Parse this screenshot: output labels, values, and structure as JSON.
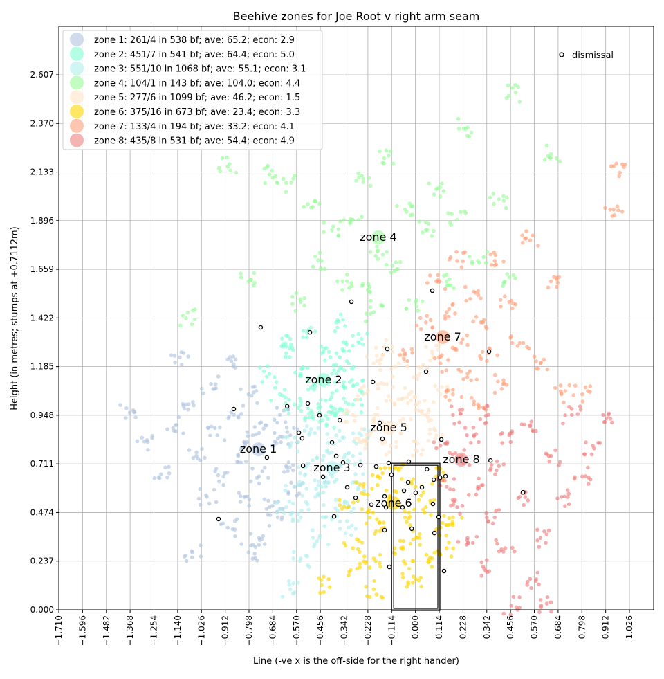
{
  "chart_data": {
    "type": "scatter",
    "title": "Beehive zones for Joe Root v right arm seam",
    "xlabel": "Line (-ve x is the off-side for the right hander)",
    "ylabel": "Height (in metres; stumps at +0.7112m)",
    "xlim": [
      -1.71,
      1.142
    ],
    "ylim": [
      0,
      2.843
    ],
    "grid": true,
    "legend_placement": "top-left",
    "x_ticks": [
      "−1.710",
      "−1.596",
      "−1.482",
      "−1.368",
      "−1.254",
      "−1.140",
      "−1.026",
      "−0.912",
      "−0.798",
      "−0.684",
      "−0.570",
      "−0.456",
      "−0.342",
      "−0.228",
      "−0.114",
      "0.000",
      "0.114",
      "0.228",
      "0.342",
      "0.456",
      "0.570",
      "0.684",
      "0.798",
      "0.912",
      "1.026"
    ],
    "x_tick_values": [
      -1.71,
      -1.596,
      -1.482,
      -1.368,
      -1.254,
      -1.14,
      -1.026,
      -0.912,
      -0.798,
      -0.684,
      -0.57,
      -0.456,
      -0.342,
      -0.228,
      -0.114,
      0,
      0.114,
      0.228,
      0.342,
      0.456,
      0.57,
      0.684,
      0.798,
      0.912,
      1.026
    ],
    "y_ticks": [
      "0.000",
      "0.237",
      "0.474",
      "0.711",
      "0.948",
      "1.185",
      "1.422",
      "1.659",
      "1.896",
      "2.133",
      "2.370",
      "2.607"
    ],
    "y_tick_values": [
      0,
      0.237,
      0.474,
      0.711,
      0.948,
      1.185,
      1.422,
      1.659,
      1.896,
      2.133,
      2.37,
      2.607
    ],
    "stumps_box": {
      "x": [
        -0.111,
        0.114
      ],
      "y": [
        0,
        0.711
      ]
    },
    "zones": [
      {
        "name": "zone 1",
        "legend": "zone 1: 261/4 in 538 bf; ave: 65.2; econ: 2.9",
        "color": "#b0c4de",
        "label_at": [
          -0.753,
          0.765
        ],
        "points": [
          [
            -1.37,
            0.96
          ],
          [
            -1.3,
            0.82
          ],
          [
            -1.22,
            0.66
          ],
          [
            -1.15,
            0.9
          ],
          [
            -1.1,
            1.0
          ],
          [
            -1.05,
            0.75
          ],
          [
            -1.0,
            0.55
          ],
          [
            -0.98,
            1.1
          ],
          [
            -0.95,
            0.85
          ],
          [
            -0.92,
            0.65
          ],
          [
            -0.9,
            0.4
          ],
          [
            -0.87,
            0.95
          ],
          [
            -0.85,
            0.75
          ],
          [
            -0.82,
            0.55
          ],
          [
            -0.8,
            1.05
          ],
          [
            -0.78,
            0.85
          ],
          [
            -0.75,
            0.65
          ],
          [
            -0.72,
            0.9
          ],
          [
            -0.7,
            0.5
          ],
          [
            -0.68,
            0.8
          ],
          [
            -0.65,
            0.95
          ],
          [
            -0.62,
            0.7
          ],
          [
            -0.6,
            0.85
          ],
          [
            -0.58,
            0.6
          ],
          [
            -1.13,
            1.23
          ],
          [
            -0.9,
            1.22
          ],
          [
            -0.8,
            0.28
          ],
          [
            -1.07,
            0.28
          ],
          [
            -0.66,
            0.45
          ],
          [
            -0.75,
            0.35
          ]
        ]
      },
      {
        "name": "zone 2",
        "legend": "zone 2: 451/7 in 541 bf; ave: 64.4; econ: 5.0",
        "color": "#7fffd4",
        "label_at": [
          -0.44,
          1.103
        ],
        "points": [
          [
            -0.7,
            1.15
          ],
          [
            -0.65,
            1.05
          ],
          [
            -0.62,
            1.25
          ],
          [
            -0.58,
            1.0
          ],
          [
            -0.55,
            1.15
          ],
          [
            -0.52,
            1.35
          ],
          [
            -0.5,
            0.97
          ],
          [
            -0.48,
            1.1
          ],
          [
            -0.45,
            1.25
          ],
          [
            -0.43,
            1.02
          ],
          [
            -0.4,
            1.15
          ],
          [
            -0.38,
            1.4
          ],
          [
            -0.36,
            0.98
          ],
          [
            -0.34,
            1.08
          ],
          [
            -0.32,
            1.2
          ],
          [
            -0.3,
            1.0
          ],
          [
            -0.28,
            1.1
          ],
          [
            -0.27,
            1.3
          ],
          [
            -0.46,
            0.96
          ],
          [
            -0.42,
            0.93
          ],
          [
            -0.6,
            1.32
          ],
          [
            -0.35,
            1.27
          ]
        ]
      },
      {
        "name": "zone 3",
        "legend": "zone 3: 551/10 in 1068 bf; ave: 55.1; econ: 3.1",
        "color": "#afeeee",
        "label_at": [
          -0.4,
          0.675
        ],
        "points": [
          [
            -0.6,
            0.8
          ],
          [
            -0.58,
            0.6
          ],
          [
            -0.55,
            0.45
          ],
          [
            -0.52,
            0.7
          ],
          [
            -0.5,
            0.88
          ],
          [
            -0.48,
            0.55
          ],
          [
            -0.46,
            0.35
          ],
          [
            -0.44,
            0.75
          ],
          [
            -0.42,
            0.62
          ],
          [
            -0.4,
            0.45
          ],
          [
            -0.38,
            0.85
          ],
          [
            -0.36,
            0.7
          ],
          [
            -0.34,
            0.52
          ],
          [
            -0.32,
            0.4
          ],
          [
            -0.3,
            0.75
          ],
          [
            -0.28,
            0.62
          ],
          [
            -0.26,
            0.85
          ],
          [
            -0.55,
            0.25
          ],
          [
            -0.6,
            0.1
          ],
          [
            -0.45,
            0.6
          ],
          [
            -0.62,
            0.5
          ]
        ]
      },
      {
        "name": "zone 4",
        "legend": "zone 4: 104/1 in 143 bf; ave: 104.0; econ: 4.4",
        "color": "#98fb98",
        "label_at": [
          -0.178,
          1.798
        ],
        "points": [
          [
            -0.9,
            2.16
          ],
          [
            -0.7,
            2.12
          ],
          [
            -0.62,
            2.08
          ],
          [
            -0.5,
            1.96
          ],
          [
            -0.45,
            1.7
          ],
          [
            -0.4,
            1.85
          ],
          [
            -0.35,
            1.6
          ],
          [
            -0.3,
            1.9
          ],
          [
            -0.25,
            2.1
          ],
          [
            -0.22,
            1.55
          ],
          [
            -0.18,
            1.75
          ],
          [
            -0.15,
            2.2
          ],
          [
            -0.1,
            1.65
          ],
          [
            -0.05,
            1.95
          ],
          [
            0.0,
            1.5
          ],
          [
            0.05,
            1.85
          ],
          [
            0.1,
            2.05
          ],
          [
            0.15,
            1.6
          ],
          [
            0.2,
            1.9
          ],
          [
            0.25,
            2.35
          ],
          [
            0.3,
            1.7
          ],
          [
            0.4,
            2.0
          ],
          [
            0.48,
            2.52
          ],
          [
            0.65,
            2.22
          ],
          [
            -0.8,
            1.6
          ],
          [
            -0.2,
            1.45
          ],
          [
            -1.1,
            1.42
          ],
          [
            -0.55,
            1.5
          ],
          [
            0.45,
            1.62
          ]
        ]
      },
      {
        "name": "zone 5",
        "legend": "zone 5: 277/6 in 1099 bf; ave: 46.2; econ: 1.5",
        "color": "#ffe4c4",
        "label_at": [
          -0.128,
          0.87
        ],
        "points": [
          [
            -0.3,
            0.95
          ],
          [
            -0.25,
            1.05
          ],
          [
            -0.22,
            0.85
          ],
          [
            -0.2,
            1.2
          ],
          [
            -0.18,
            0.95
          ],
          [
            -0.15,
            1.1
          ],
          [
            -0.12,
            0.8
          ],
          [
            -0.1,
            1.0
          ],
          [
            -0.08,
            1.2
          ],
          [
            -0.05,
            0.9
          ],
          [
            -0.03,
            1.05
          ],
          [
            0.0,
            0.78
          ],
          [
            0.02,
            1.15
          ],
          [
            0.05,
            0.95
          ],
          [
            0.08,
            1.25
          ],
          [
            0.1,
            0.85
          ],
          [
            0.12,
            1.05
          ],
          [
            -0.27,
            0.82
          ],
          [
            -0.15,
            1.28
          ],
          [
            0.0,
            1.0
          ]
        ]
      },
      {
        "name": "zone 6",
        "legend": "zone 6: 375/16 in 673 bf; ave: 23.4; econ: 3.3",
        "color": "#ffd700",
        "label_at": [
          -0.105,
          0.503
        ],
        "points": [
          [
            -0.32,
            0.5
          ],
          [
            -0.3,
            0.3
          ],
          [
            -0.28,
            0.2
          ],
          [
            -0.25,
            0.6
          ],
          [
            -0.22,
            0.45
          ],
          [
            -0.2,
            0.25
          ],
          [
            -0.18,
            0.65
          ],
          [
            -0.15,
            0.4
          ],
          [
            -0.12,
            0.55
          ],
          [
            -0.1,
            0.3
          ],
          [
            -0.08,
            0.68
          ],
          [
            -0.05,
            0.45
          ],
          [
            -0.03,
            0.2
          ],
          [
            0.0,
            0.6
          ],
          [
            0.02,
            0.35
          ],
          [
            0.05,
            0.5
          ],
          [
            0.08,
            0.25
          ],
          [
            0.1,
            0.65
          ],
          [
            0.12,
            0.4
          ],
          [
            0.15,
            0.3
          ],
          [
            0.18,
            0.45
          ],
          [
            -0.45,
            0.12
          ],
          [
            -0.2,
            0.1
          ],
          [
            0.0,
            0.15
          ]
        ]
      },
      {
        "name": "zone 7",
        "legend": "zone 7: 133/4 in 194 bf; ave: 33.2; econ: 4.1",
        "color": "#ffa07a",
        "label_at": [
          0.131,
          1.312
        ],
        "points": [
          [
            0.05,
            1.4
          ],
          [
            0.1,
            1.6
          ],
          [
            0.12,
            1.2
          ],
          [
            0.15,
            1.45
          ],
          [
            0.18,
            1.05
          ],
          [
            0.2,
            1.7
          ],
          [
            0.22,
            1.3
          ],
          [
            0.25,
            1.15
          ],
          [
            0.28,
            1.55
          ],
          [
            0.3,
            1.0
          ],
          [
            0.32,
            1.4
          ],
          [
            0.35,
            1.25
          ],
          [
            0.38,
            1.7
          ],
          [
            0.42,
            1.1
          ],
          [
            0.45,
            1.5
          ],
          [
            0.5,
            1.3
          ],
          [
            0.55,
            1.8
          ],
          [
            0.6,
            1.2
          ],
          [
            0.65,
            1.6
          ],
          [
            0.7,
            1.05
          ],
          [
            0.8,
            1.05
          ],
          [
            0.95,
            1.95
          ],
          [
            0.98,
            2.13
          ],
          [
            -0.05,
            1.25
          ]
        ]
      },
      {
        "name": "zone 8",
        "legend": "zone 8: 435/8 in 531 bf; ave: 54.4; econ: 4.9",
        "color": "#f08080",
        "label_at": [
          0.22,
          0.715
        ],
        "points": [
          [
            0.12,
            0.8
          ],
          [
            0.15,
            0.6
          ],
          [
            0.18,
            0.95
          ],
          [
            0.2,
            0.5
          ],
          [
            0.22,
            0.75
          ],
          [
            0.25,
            0.35
          ],
          [
            0.28,
            0.85
          ],
          [
            0.3,
            0.6
          ],
          [
            0.33,
            0.2
          ],
          [
            0.35,
            0.95
          ],
          [
            0.38,
            0.45
          ],
          [
            0.4,
            0.7
          ],
          [
            0.43,
            0.3
          ],
          [
            0.45,
            0.85
          ],
          [
            0.5,
            0.55
          ],
          [
            0.55,
            0.9
          ],
          [
            0.6,
            0.35
          ],
          [
            0.65,
            0.75
          ],
          [
            0.7,
            0.55
          ],
          [
            0.75,
            0.95
          ],
          [
            0.8,
            0.65
          ],
          [
            0.85,
            0.8
          ],
          [
            0.9,
            0.95
          ],
          [
            0.46,
            0.02
          ],
          [
            0.63,
            0.03
          ],
          [
            0.55,
            0.15
          ]
        ]
      }
    ],
    "dismissal_legend": "dismissal",
    "dismissals": [
      [
        -0.307,
        1.501
      ],
      [
        0.081,
        1.555
      ],
      [
        -0.742,
        1.376
      ],
      [
        -0.506,
        1.352
      ],
      [
        -0.135,
        1.271
      ],
      [
        0.353,
        1.258
      ],
      [
        0.051,
        1.16
      ],
      [
        -0.204,
        1.11
      ],
      [
        -0.615,
        0.992
      ],
      [
        -0.516,
        1.005
      ],
      [
        -0.871,
        0.978
      ],
      [
        -0.46,
        0.948
      ],
      [
        -0.363,
        0.924
      ],
      [
        -0.171,
        0.911
      ],
      [
        -0.158,
        0.833
      ],
      [
        0.124,
        0.83
      ],
      [
        -0.559,
        0.863
      ],
      [
        -0.543,
        0.836
      ],
      [
        -0.4,
        0.816
      ],
      [
        -0.38,
        0.749
      ],
      [
        -0.347,
        0.718
      ],
      [
        -0.539,
        0.702
      ],
      [
        -0.264,
        0.705
      ],
      [
        -0.188,
        0.698
      ],
      [
        -0.128,
        0.715
      ],
      [
        -0.032,
        0.722
      ],
      [
        0.055,
        0.685
      ],
      [
        0.36,
        0.728
      ],
      [
        -0.115,
        0.658
      ],
      [
        -0.443,
        0.648
      ],
      [
        0.088,
        0.634
      ],
      [
        0.118,
        0.644
      ],
      [
        -0.327,
        0.597
      ],
      [
        -0.035,
        0.621
      ],
      [
        0.031,
        0.597
      ],
      [
        -0.055,
        0.58
      ],
      [
        0.001,
        0.57
      ],
      [
        -0.148,
        0.553
      ],
      [
        -0.287,
        0.546
      ],
      [
        -0.211,
        0.513
      ],
      [
        0.084,
        0.516
      ],
      [
        -0.141,
        0.499
      ],
      [
        -0.062,
        0.499
      ],
      [
        0.111,
        0.452
      ],
      [
        -0.39,
        0.455
      ],
      [
        -0.944,
        0.442
      ],
      [
        -0.018,
        0.395
      ],
      [
        -0.148,
        0.388
      ],
      [
        0.091,
        0.374
      ],
      [
        0.516,
        0.573
      ],
      [
        -0.125,
        0.209
      ],
      [
        0.137,
        0.189
      ],
      [
        -0.712,
        0.742
      ],
      [
        0.144,
        0.651
      ]
    ]
  }
}
